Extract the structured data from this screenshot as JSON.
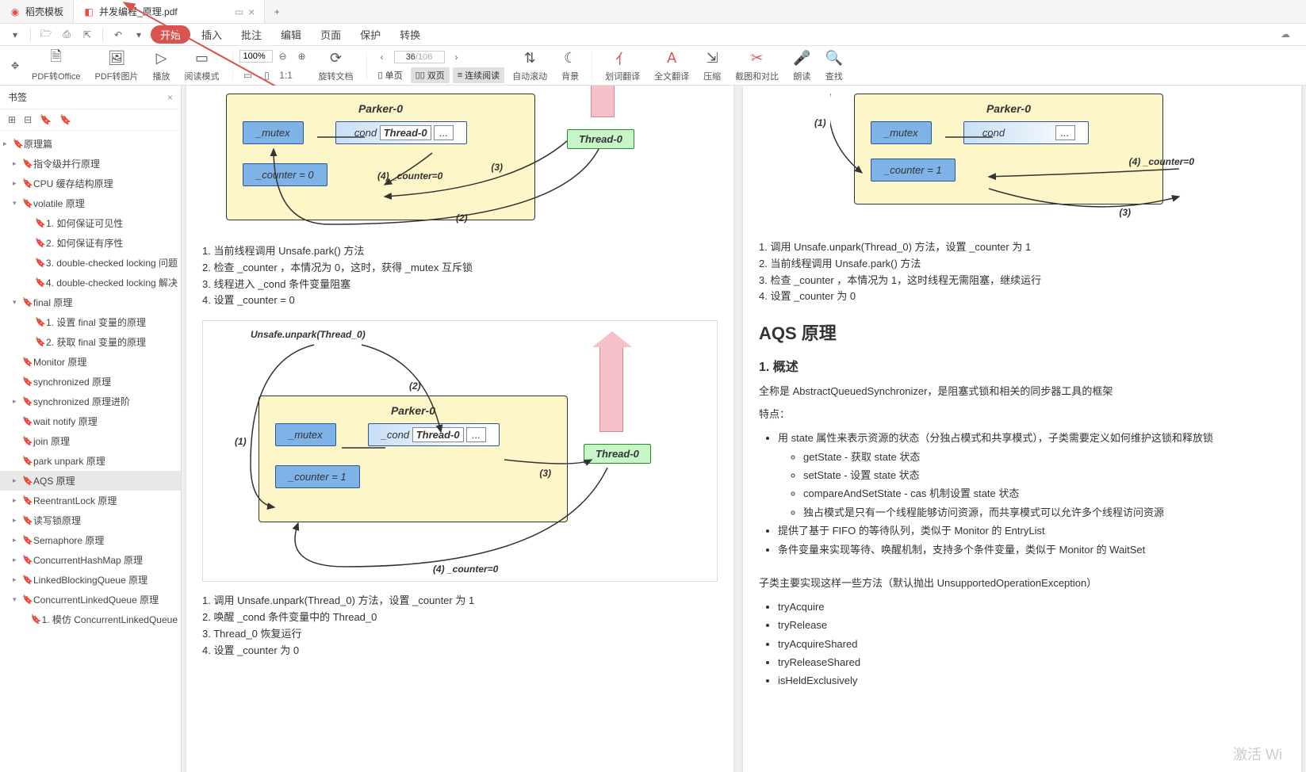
{
  "tabs": [
    {
      "icon_color": "#e74c3c",
      "label": "稻壳模板"
    },
    {
      "icon_color": "#e74c3c",
      "label": "并发编程_原理.pdf"
    }
  ],
  "menu": {
    "start": "开始",
    "items": [
      "插入",
      "批注",
      "编辑",
      "页面",
      "保护",
      "转换"
    ]
  },
  "toolbar": {
    "pdf_office": "PDF转Office",
    "pdf_img": "PDF转图片",
    "play": "播放",
    "read_mode": "阅读模式",
    "zoom": "100%",
    "rotate": "旋转文档",
    "single": "单页",
    "double": "双页",
    "continuous": "连续阅读",
    "autoscroll": "自动滚动",
    "bg": "背景",
    "word_trans": "划词翻译",
    "full_trans": "全文翻译",
    "compress": "压缩",
    "screenshot": "截图和对比",
    "read_aloud": "朗读",
    "find": "查找",
    "page_current": "36",
    "page_total": "/106"
  },
  "sidebar": {
    "title": "书签",
    "items": [
      {
        "lvl": 0,
        "arrow": "▸",
        "label": "原理篇"
      },
      {
        "lvl": 1,
        "arrow": "▸",
        "label": "指令级并行原理"
      },
      {
        "lvl": 1,
        "arrow": "▸",
        "label": "CPU 缓存结构原理"
      },
      {
        "lvl": 1,
        "arrow": "▾",
        "label": "volatile 原理"
      },
      {
        "lvl": 2,
        "arrow": "",
        "label": "1. 如何保证可见性"
      },
      {
        "lvl": 2,
        "arrow": "",
        "label": "2. 如何保证有序性"
      },
      {
        "lvl": 2,
        "arrow": "",
        "label": "3. double-checked locking 问题"
      },
      {
        "lvl": 2,
        "arrow": "",
        "label": "4. double-checked locking 解决"
      },
      {
        "lvl": 1,
        "arrow": "▾",
        "label": "final 原理"
      },
      {
        "lvl": 2,
        "arrow": "",
        "label": "1. 设置 final 变量的原理"
      },
      {
        "lvl": 2,
        "arrow": "",
        "label": "2. 获取 final 变量的原理"
      },
      {
        "lvl": 1,
        "arrow": "",
        "label": "Monitor 原理"
      },
      {
        "lvl": 1,
        "arrow": "",
        "label": "synchronized 原理"
      },
      {
        "lvl": 1,
        "arrow": "▸",
        "label": "synchronized 原理进阶"
      },
      {
        "lvl": 1,
        "arrow": "",
        "label": "wait notify 原理"
      },
      {
        "lvl": 1,
        "arrow": "",
        "label": "join 原理"
      },
      {
        "lvl": 1,
        "arrow": "",
        "label": "park unpark 原理"
      },
      {
        "lvl": 1,
        "arrow": "▸",
        "label": "AQS 原理",
        "selected": true
      },
      {
        "lvl": 1,
        "arrow": "▸",
        "label": "ReentrantLock 原理"
      },
      {
        "lvl": 1,
        "arrow": "▸",
        "label": "读写锁原理"
      },
      {
        "lvl": 1,
        "arrow": "▸",
        "label": "Semaphore 原理"
      },
      {
        "lvl": 1,
        "arrow": "▸",
        "label": "ConcurrentHashMap 原理"
      },
      {
        "lvl": 1,
        "arrow": "▸",
        "label": "LinkedBlockingQueue 原理"
      },
      {
        "lvl": 1,
        "arrow": "▾",
        "label": "ConcurrentLinkedQueue 原理"
      },
      {
        "lvl": 2,
        "arrow": "",
        "label": "1. 模仿 ConcurrentLinkedQueue"
      }
    ]
  },
  "left_page": {
    "diagram1": {
      "title": "Parker-0",
      "mutex": "_mutex",
      "cond": "_cond",
      "thread": "Thread-0",
      "dots": "...",
      "counter": "_counter = 0",
      "ext_thread": "Thread-0",
      "labels": {
        "l2": "(2)",
        "l3": "(3)",
        "l4": "(4) _counter=0"
      },
      "colors": {
        "box_bg": "#fdf6c8",
        "box_border": "#333333",
        "node_bg": "#7fb3e8",
        "node_border": "#2a5599",
        "thread_bg": "#c8f5c8",
        "thread_border": "#2a8a2a",
        "arrow_bg": "#f5c0c8"
      }
    },
    "steps1": [
      "1. 当前线程调用 Unsafe.park() 方法",
      "2. 检查 _counter ，本情况为 0，这时，获得 _mutex 互斥锁",
      "3. 线程进入 _cond 条件变量阻塞",
      "4. 设置 _counter = 0"
    ],
    "diagram2": {
      "caption": "Unsafe.unpark(Thread_0)",
      "title": "Parker-0",
      "mutex": "_mutex",
      "cond": "_cond",
      "thread": "Thread-0",
      "dots": "...",
      "counter": "_counter = 1",
      "ext_thread": "Thread-0",
      "labels": {
        "l1": "(1)",
        "l2": "(2)",
        "l3": "(3)",
        "l4": "(4) _counter=0"
      }
    },
    "steps2": [
      "1. 调用 Unsafe.unpark(Thread_0) 方法，设置 _counter 为 1",
      "2. 唤醒 _cond 条件变量中的 Thread_0",
      "3. Thread_0 恢复运行",
      "4. 设置 _counter 为 0"
    ]
  },
  "right_page": {
    "diagram": {
      "title": "Parker-0",
      "mutex": "_mutex",
      "cond": "_cond",
      "dots": "...",
      "counter": "_counter = 1",
      "labels": {
        "l1": "(1)",
        "l3": "(3)",
        "l4": "(4) _counter=0"
      }
    },
    "steps": [
      "1. 调用 Unsafe.unpark(Thread_0) 方法，设置 _counter 为 1",
      "2. 当前线程调用 Unsafe.park() 方法",
      "3. 检查 _counter ，本情况为 1，这时线程无需阻塞，继续运行",
      "4. 设置 _counter 为 0"
    ],
    "h2": "AQS 原理",
    "h3_1": "1. 概述",
    "p1": "全称是 AbstractQueuedSynchronizer，是阻塞式锁和相关的同步器工具的框架",
    "p2": "特点：",
    "bullets1": [
      "用 state 属性来表示资源的状态（分独占模式和共享模式），子类需要定义如何维护这锁和释放锁"
    ],
    "sub_bullets": [
      "getState - 获取 state 状态",
      "setState - 设置 state 状态",
      "compareAndSetState - cas 机制设置 state 状态",
      "独占模式是只有一个线程能够访问资源，而共享模式可以允许多个线程访问资源"
    ],
    "bullets2": [
      "提供了基于 FIFO 的等待队列，类似于 Monitor 的 EntryList",
      "条件变量来实现等待、唤醒机制，支持多个条件变量，类似于 Monitor 的 WaitSet"
    ],
    "p3": "子类主要实现这样一些方法（默认抛出 UnsupportedOperationException）",
    "methods": [
      "tryAcquire",
      "tryRelease",
      "tryAcquireShared",
      "tryReleaseShared",
      "isHeldExclusively"
    ]
  },
  "watermark": "激活 Wi"
}
